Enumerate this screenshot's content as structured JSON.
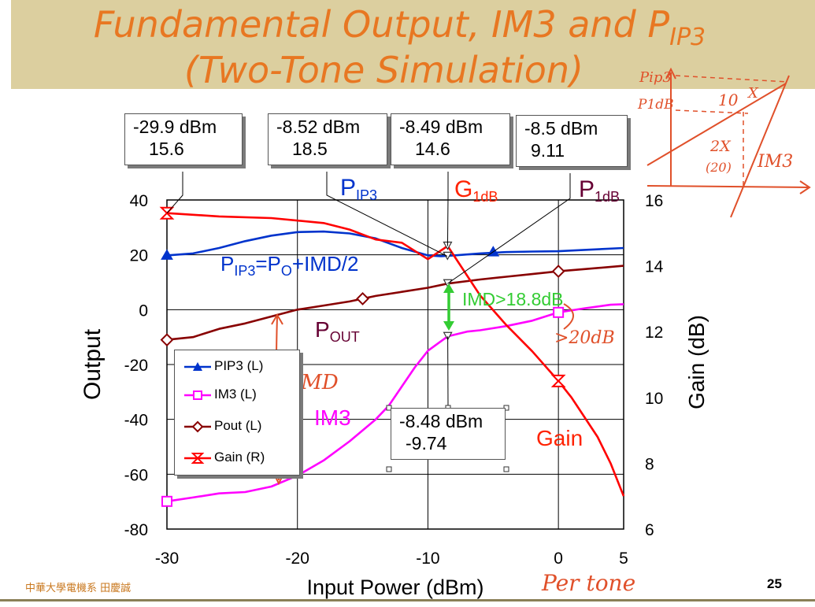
{
  "slide": {
    "title_line1": "Fundamental Output, IM3 and P",
    "title_line1_sub": "IP3",
    "title_line2": "(Two-Tone Simulation)",
    "footer_left": "中華大學電機系  田慶誠",
    "page_number": "25"
  },
  "chart_data": {
    "type": "line",
    "xlabel": "Input Power (dBm)",
    "ylabel_left": "Output",
    "ylabel_right": "Gain (dB)",
    "xlim": [
      -30,
      5
    ],
    "ylim_left": [
      -80,
      40
    ],
    "ylim_right": [
      6,
      16
    ],
    "x_ticks": [
      -30,
      -20,
      -10,
      0,
      5
    ],
    "y_ticks_left": [
      40,
      20,
      0,
      -20,
      -40,
      -60,
      -80
    ],
    "y_ticks_right": [
      16,
      14,
      12,
      10,
      8,
      6
    ],
    "grid": true,
    "series": [
      {
        "name": "PIP3 (L)",
        "axis": "left",
        "color": "#0033cc",
        "marker": "triangle",
        "x": [
          -30,
          -28,
          -26,
          -24,
          -22,
          -20,
          -18,
          -16,
          -14,
          -12,
          -10,
          -9,
          -8,
          -6,
          -4,
          -2,
          0,
          2,
          5
        ],
        "y": [
          19.8,
          20.5,
          22.5,
          25.0,
          27.0,
          28.3,
          28.5,
          27.8,
          26.0,
          22.5,
          19.8,
          19.5,
          19.8,
          20.5,
          21.0,
          21.2,
          21.3,
          21.8,
          22.5
        ]
      },
      {
        "name": "IM3 (L)",
        "axis": "left",
        "color": "#ff00ff",
        "marker": "square",
        "x": [
          -30,
          -28,
          -26,
          -24,
          -22,
          -20,
          -18,
          -16,
          -14,
          -13,
          -12,
          -11,
          -10,
          -9,
          -8.48,
          -7,
          -6,
          -4,
          -2,
          0,
          2,
          4,
          5
        ],
        "y": [
          -69.9,
          -68.5,
          -67.0,
          -66.5,
          -64.5,
          -60.5,
          -55.0,
          -48.0,
          -40.0,
          -35.0,
          -28.0,
          -21.0,
          -15.0,
          -11.5,
          -9.74,
          -8.0,
          -7.5,
          -6.0,
          -4.0,
          -1.0,
          0.5,
          1.8,
          2.0
        ]
      },
      {
        "name": "Pout (L)",
        "axis": "left",
        "color": "#880000",
        "marker": "diamond",
        "x": [
          -30,
          -28,
          -26,
          -24,
          -22,
          -20,
          -18,
          -16,
          -14,
          -12,
          -10,
          -8.48,
          -6,
          -4,
          -2,
          0,
          2,
          5
        ],
        "y": [
          -11.0,
          -10.0,
          -7.0,
          -5.0,
          -2.5,
          0.0,
          1.5,
          3.0,
          5.0,
          6.5,
          8.0,
          9.5,
          11.0,
          12.0,
          13.0,
          14.0,
          14.8,
          16.0
        ]
      },
      {
        "name": "Gain (R)",
        "axis": "right",
        "color": "#ff0000",
        "marker": "hourglass",
        "x": [
          -30,
          -26,
          -22,
          -18,
          -16,
          -14,
          -12,
          -10,
          -8.49,
          -6,
          -4,
          -2,
          0,
          1,
          2,
          3,
          4,
          5
        ],
        "y": [
          15.6,
          15.5,
          15.45,
          15.3,
          15.1,
          14.8,
          14.7,
          14.2,
          14.6,
          13.1,
          12.2,
          11.4,
          10.5,
          10.0,
          9.4,
          8.8,
          8.0,
          7.0
        ]
      }
    ],
    "callouts": [
      {
        "line1": "-29.9 dBm",
        "line2": "15.6"
      },
      {
        "line1": "-8.52 dBm",
        "line2": "18.5"
      },
      {
        "line1": "-8.49 dBm",
        "line2": "14.6"
      },
      {
        "line1": "-8.5 dBm",
        "line2": "9.11"
      },
      {
        "line1": "-8.48 dBm",
        "line2": "-9.74"
      }
    ],
    "annotations": {
      "pip3_label": "P",
      "pip3_label_sub": "IP3",
      "g1db_label": "G",
      "g1db_label_sub": "1dB",
      "p1db_label": "P",
      "p1db_label_sub": "1dB",
      "pip3_formula_a": "P",
      "pip3_formula_sub1": "IP3",
      "pip3_formula_b": "=P",
      "pip3_formula_sub2": "O",
      "pip3_formula_c": "+IMD/2",
      "imd_label": "IMD>18.8dB",
      "pout_label": "P",
      "pout_label_sub": "OUT",
      "im3_label": "IM3",
      "gain_label": "Gain"
    },
    "handwritten": {
      "imd": "IMD",
      "gt20db": ">20dB",
      "per_tone": "Per tone",
      "pip3": "Pip3",
      "p1db": "P1dB",
      "ten": "10",
      "x_mark": "X",
      "two_x": "2X",
      "twenty": "(20)",
      "im3": "IM3"
    }
  }
}
